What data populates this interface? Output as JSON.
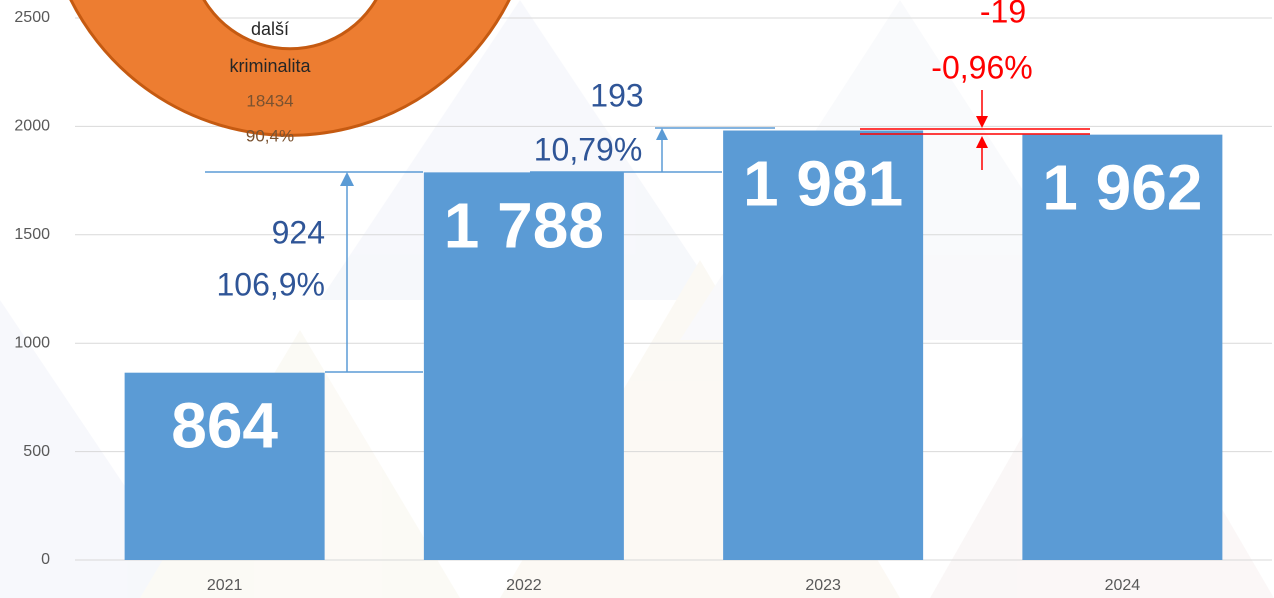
{
  "chart_data": {
    "type": "bar",
    "categories": [
      "2021",
      "2022",
      "2023",
      "2024"
    ],
    "values": [
      864,
      1788,
      1981,
      1962
    ],
    "value_labels": [
      "864",
      "1 788",
      "1 981",
      "1 962"
    ],
    "color": "#5b9bd5",
    "ylim": [
      0,
      2500
    ],
    "yticks": [
      0,
      500,
      1000,
      1500,
      2000,
      2500
    ],
    "grid": true,
    "annotations": [
      "924",
      "106,9%",
      "193",
      "10,79%",
      "-19",
      "-0,96%"
    ],
    "donut_labels": [
      "další",
      "kriminalita",
      "18434",
      "90,4%"
    ]
  }
}
